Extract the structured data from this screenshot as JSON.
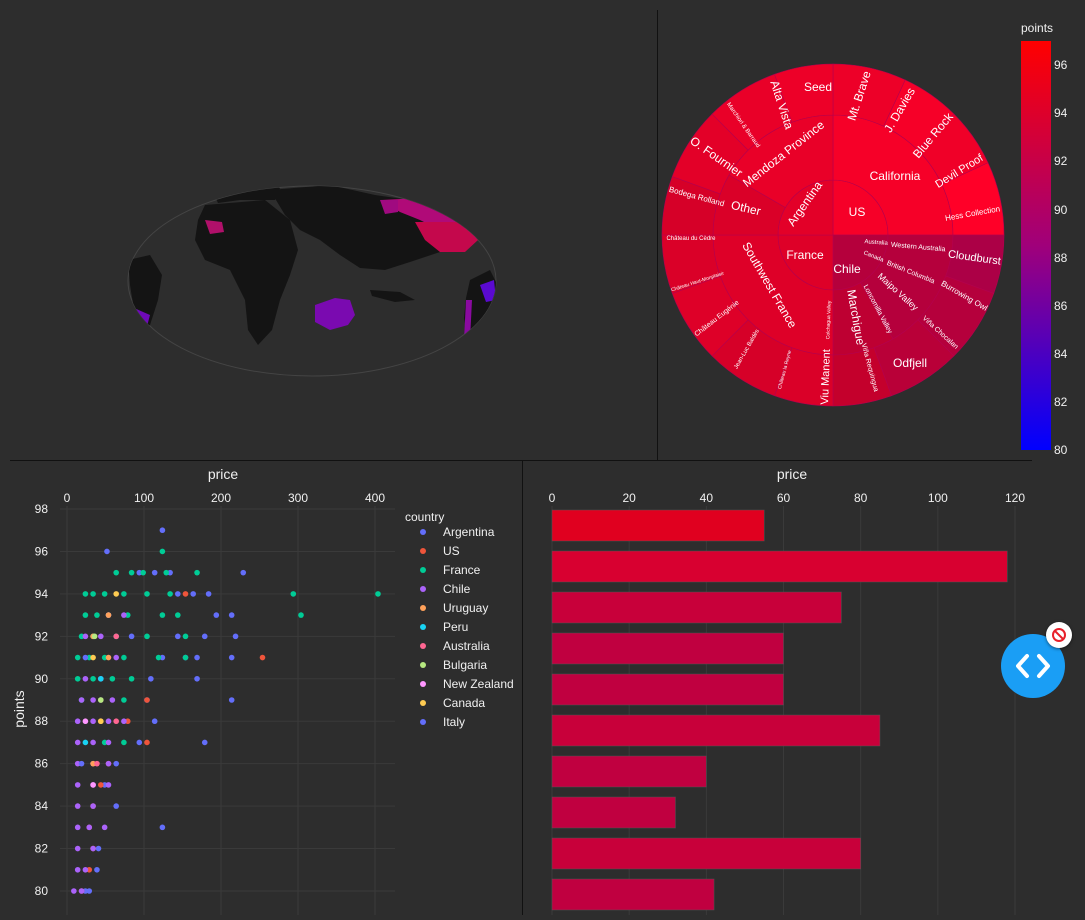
{
  "colors": {
    "background": "#2d2d2d",
    "land": "#141414",
    "accent_fab": "#1a9ef5"
  },
  "colorbar": {
    "title": "points",
    "ticks": [
      "96",
      "94",
      "92",
      "90",
      "88",
      "86",
      "84",
      "82",
      "80"
    ]
  },
  "chart_data": [
    {
      "type": "choropleth",
      "projection": "natural earth",
      "colorscale": "bluered",
      "range": [
        80,
        97
      ],
      "regions": [
        {
          "country": "US",
          "value": 90.5
        },
        {
          "country": "Canada",
          "value": 89
        },
        {
          "country": "Chile",
          "value": 88
        },
        {
          "country": "Argentina",
          "value": 86
        },
        {
          "country": "Australia",
          "value": 87.5
        },
        {
          "country": "France",
          "value": 90
        },
        {
          "country": "Peru",
          "value": 87
        }
      ]
    },
    {
      "type": "sunburst",
      "color_by": "points",
      "labels": {
        "inner": [
          "Argentina",
          "US",
          "France",
          "Chile"
        ],
        "middle": [
          "Mendoza Province",
          "Other",
          "California",
          "Southwest France",
          "Marchigue",
          "Maipo Valley",
          "Colchagua Valley",
          "Loncomilla Valley",
          "British Columbia",
          "Canada",
          "Western Australia",
          "Australia"
        ],
        "outer": [
          "Seed",
          "Mt. Brave",
          "J. Davies",
          "Blue Rock",
          "Devil Proof",
          "Hess Collection",
          "Alta Vista",
          "Marchiori & Barraud",
          "O. Fournier",
          "Bodega Rolland",
          "Château du Cèdre",
          "Château Haut-Monplaisir",
          "Château Eugénie",
          "Jean-Luc Baldès",
          "Château la Reyne",
          "Viu Manent",
          "Viña Requingua",
          "Odfjell",
          "Viña Chocalan",
          "Cloudburst",
          "Burrowing Owl"
        ]
      }
    },
    {
      "type": "scatter",
      "title": "price",
      "ylabel": "points",
      "xlim": [
        0,
        420
      ],
      "ylim": [
        79.5,
        98.5
      ],
      "x_ticks": [
        "0",
        "100",
        "200",
        "300",
        "400"
      ],
      "y_ticks": [
        "98",
        "96",
        "94",
        "92",
        "90",
        "88",
        "86",
        "84",
        "82",
        "80"
      ],
      "legend_title": "country",
      "series": [
        {
          "name": "Argentina",
          "color": "#636efa",
          "points": [
            [
              120,
              97
            ],
            [
              48,
              96
            ],
            [
              90,
              95
            ],
            [
              110,
              95
            ],
            [
              130,
              95
            ],
            [
              225,
              95
            ],
            [
              140,
              94
            ],
            [
              160,
              94
            ],
            [
              180,
              94
            ],
            [
              190,
              93
            ],
            [
              210,
              93
            ],
            [
              80,
              92
            ],
            [
              140,
              92
            ],
            [
              175,
              92
            ],
            [
              215,
              92
            ],
            [
              120,
              91
            ],
            [
              150,
              91
            ],
            [
              165,
              91
            ],
            [
              210,
              91
            ],
            [
              165,
              90
            ],
            [
              105,
              90
            ],
            [
              210,
              89
            ],
            [
              100,
              89
            ],
            [
              110,
              88
            ],
            [
              175,
              87
            ],
            [
              90,
              87
            ],
            [
              60,
              86
            ],
            [
              45,
              85
            ],
            [
              60,
              84
            ],
            [
              120,
              83
            ],
            [
              37,
              82
            ],
            [
              35,
              81
            ],
            [
              20,
              80
            ],
            [
              25,
              80
            ]
          ]
        },
        {
          "name": "US",
          "color": "#ef553b",
          "points": [
            [
              150,
              94
            ],
            [
              250,
              91
            ],
            [
              100,
              89
            ],
            [
              75,
              88
            ],
            [
              100,
              87
            ],
            [
              50,
              86
            ],
            [
              40,
              85
            ],
            [
              30,
              84
            ],
            [
              25,
              83
            ],
            [
              30,
              82
            ],
            [
              25,
              81
            ],
            [
              15,
              80
            ]
          ]
        },
        {
          "name": "France",
          "color": "#00cc96",
          "points": [
            [
              120,
              96
            ],
            [
              60,
              95
            ],
            [
              80,
              95
            ],
            [
              95,
              95
            ],
            [
              125,
              95
            ],
            [
              165,
              95
            ],
            [
              20,
              94
            ],
            [
              30,
              94
            ],
            [
              45,
              94
            ],
            [
              70,
              94
            ],
            [
              100,
              94
            ],
            [
              130,
              94
            ],
            [
              290,
              94
            ],
            [
              400,
              94
            ],
            [
              20,
              93
            ],
            [
              35,
              93
            ],
            [
              50,
              93
            ],
            [
              75,
              93
            ],
            [
              120,
              93
            ],
            [
              140,
              93
            ],
            [
              300,
              93
            ],
            [
              15,
              92
            ],
            [
              30,
              92
            ],
            [
              60,
              92
            ],
            [
              100,
              92
            ],
            [
              150,
              92
            ],
            [
              10,
              91
            ],
            [
              25,
              91
            ],
            [
              45,
              91
            ],
            [
              70,
              91
            ],
            [
              115,
              91
            ],
            [
              150,
              91
            ],
            [
              10,
              90
            ],
            [
              30,
              90
            ],
            [
              55,
              90
            ],
            [
              80,
              90
            ],
            [
              15,
              89
            ],
            [
              40,
              89
            ],
            [
              70,
              89
            ],
            [
              45,
              87
            ],
            [
              70,
              87
            ]
          ]
        },
        {
          "name": "Chile",
          "color": "#ab63fa",
          "points": [
            [
              50,
              93
            ],
            [
              70,
              93
            ],
            [
              20,
              92
            ],
            [
              40,
              92
            ],
            [
              60,
              91
            ],
            [
              20,
              90
            ],
            [
              40,
              90
            ],
            [
              15,
              89
            ],
            [
              30,
              89
            ],
            [
              55,
              89
            ],
            [
              10,
              88
            ],
            [
              30,
              88
            ],
            [
              50,
              88
            ],
            [
              70,
              88
            ],
            [
              10,
              87
            ],
            [
              30,
              87
            ],
            [
              50,
              87
            ],
            [
              10,
              86
            ],
            [
              30,
              86
            ],
            [
              50,
              86
            ],
            [
              10,
              85
            ],
            [
              30,
              85
            ],
            [
              50,
              85
            ],
            [
              10,
              84
            ],
            [
              30,
              84
            ],
            [
              10,
              83
            ],
            [
              25,
              83
            ],
            [
              45,
              83
            ],
            [
              10,
              82
            ],
            [
              30,
              82
            ],
            [
              10,
              81
            ],
            [
              20,
              81
            ],
            [
              5,
              80
            ],
            [
              15,
              80
            ]
          ]
        },
        {
          "name": "Uruguay",
          "color": "#ffa15a",
          "points": [
            [
              50,
              93
            ],
            [
              30,
              92
            ],
            [
              50,
              91
            ],
            [
              40,
              88
            ],
            [
              30,
              86
            ]
          ]
        },
        {
          "name": "Peru",
          "color": "#19d3f3",
          "points": [
            [
              40,
              90
            ],
            [
              20,
              87
            ]
          ]
        },
        {
          "name": "Australia",
          "color": "#ff6692",
          "points": [
            [
              60,
              92
            ],
            [
              40,
              89
            ],
            [
              60,
              88
            ],
            [
              35,
              86
            ]
          ]
        },
        {
          "name": "Bulgaria",
          "color": "#b6e880",
          "points": [
            [
              32,
              92
            ],
            [
              40,
              89
            ]
          ]
        },
        {
          "name": "New Zealand",
          "color": "#ff97ff",
          "points": [
            [
              20,
              88
            ],
            [
              30,
              85
            ]
          ]
        },
        {
          "name": "Canada",
          "color": "#fecb52",
          "points": [
            [
              60,
              94
            ],
            [
              30,
              91
            ],
            [
              40,
              88
            ]
          ]
        },
        {
          "name": "Italy",
          "color": "#636efa",
          "points": [
            [
              20,
              91
            ],
            [
              15,
              86
            ]
          ]
        }
      ]
    },
    {
      "type": "bar",
      "orientation": "horizontal",
      "title": "price",
      "xlim": [
        0,
        125
      ],
      "x_ticks": [
        "0",
        "20",
        "40",
        "60",
        "80",
        "100",
        "120"
      ],
      "values": [
        55,
        118,
        75,
        60,
        60,
        85,
        40,
        32,
        80,
        42
      ]
    }
  ]
}
